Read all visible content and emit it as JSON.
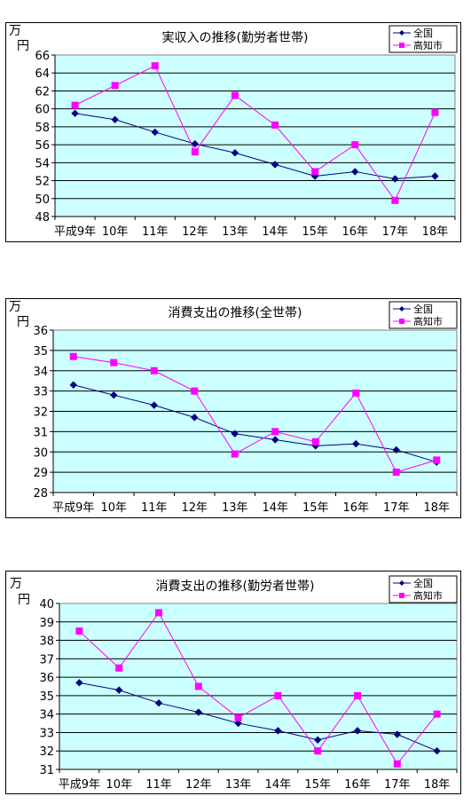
{
  "chart_data": [
    {
      "type": "line",
      "title": "実収入の推移(勤労者世帯)",
      "ylabel": "万円",
      "ylabel_chars": [
        "万",
        "円"
      ],
      "ylim": [
        48,
        66
      ],
      "yticks": [
        48,
        50,
        52,
        54,
        56,
        58,
        60,
        62,
        64,
        66
      ],
      "grid": true,
      "legend_position": "top-right",
      "categories": [
        "平成9年",
        "10年",
        "11年",
        "12年",
        "13年",
        "14年",
        "15年",
        "16年",
        "17年",
        "18年"
      ],
      "series": [
        {
          "name": "全国",
          "color": "#000080",
          "marker": "diamond",
          "values": [
            59.5,
            58.8,
            57.4,
            56.1,
            55.1,
            53.8,
            52.5,
            53.0,
            52.2,
            52.5
          ]
        },
        {
          "name": "高知市",
          "color": "#FF00FF",
          "marker": "square",
          "values": [
            60.4,
            62.6,
            64.8,
            55.2,
            61.5,
            58.2,
            53.0,
            56.0,
            49.8,
            59.6
          ]
        }
      ]
    },
    {
      "type": "line",
      "title": "消費支出の推移(全世帯)",
      "ylabel": "万円",
      "ylabel_chars": [
        "万",
        "円"
      ],
      "ylim": [
        28,
        36
      ],
      "yticks": [
        28,
        29,
        30,
        31,
        32,
        33,
        34,
        35,
        36
      ],
      "grid": true,
      "legend_position": "top-right",
      "categories": [
        "平成9年",
        "10年",
        "11年",
        "12年",
        "13年",
        "14年",
        "15年",
        "16年",
        "17年",
        "18年"
      ],
      "series": [
        {
          "name": "全国",
          "color": "#000080",
          "marker": "diamond",
          "values": [
            33.3,
            32.8,
            32.3,
            31.7,
            30.9,
            30.6,
            30.3,
            30.4,
            30.1,
            29.5
          ]
        },
        {
          "name": "高知市",
          "color": "#FF00FF",
          "marker": "square",
          "values": [
            34.7,
            34.4,
            34.0,
            33.0,
            29.9,
            31.0,
            30.5,
            32.9,
            29.0,
            29.6
          ]
        }
      ]
    },
    {
      "type": "line",
      "title": "消費支出の推移(勤労者世帯)",
      "ylabel": "万円",
      "ylabel_chars": [
        "万",
        "円"
      ],
      "ylim": [
        31,
        40
      ],
      "yticks": [
        31,
        32,
        33,
        34,
        35,
        36,
        37,
        38,
        39,
        40
      ],
      "grid": true,
      "legend_position": "top-right",
      "categories": [
        "平成9年",
        "10年",
        "11年",
        "12年",
        "13年",
        "14年",
        "15年",
        "16年",
        "17年",
        "18年"
      ],
      "series": [
        {
          "name": "全国",
          "color": "#000080",
          "marker": "diamond",
          "values": [
            35.7,
            35.3,
            34.6,
            34.1,
            33.5,
            33.1,
            32.6,
            33.1,
            32.9,
            32.0
          ]
        },
        {
          "name": "高知市",
          "color": "#FF00FF",
          "marker": "square",
          "values": [
            38.5,
            36.5,
            39.5,
            35.5,
            33.8,
            35.0,
            32.0,
            35.0,
            31.3,
            34.0
          ]
        }
      ]
    }
  ],
  "colors": {
    "plot_bg": "#CCFFFF",
    "grid": "#000000"
  }
}
